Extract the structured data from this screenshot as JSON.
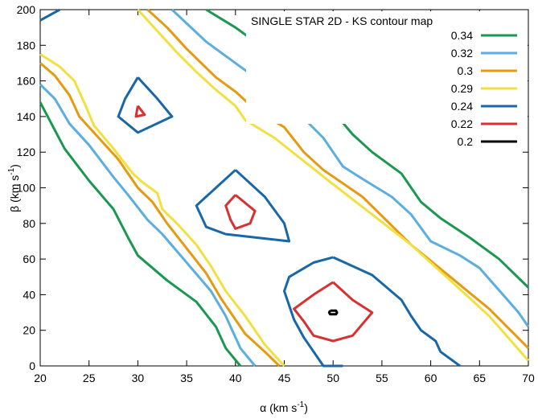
{
  "chart_data": {
    "type": "contour",
    "title": "SINGLE STAR 2D - KS contour map",
    "xlabel": {
      "main": "α (km s",
      "sup": "-1",
      "tail": ")"
    },
    "ylabel": {
      "main": "β (km s",
      "sup": "-1",
      "tail": ")"
    },
    "xlim": [
      20,
      70
    ],
    "ylim": [
      0,
      200
    ],
    "xticks": [
      20,
      25,
      30,
      35,
      40,
      45,
      50,
      55,
      60,
      65,
      70
    ],
    "yticks": [
      0,
      20,
      40,
      60,
      80,
      100,
      120,
      140,
      160,
      180,
      200
    ],
    "legend_position": "top-right",
    "series": [
      {
        "name": "0.34",
        "color": "#1a9850",
        "paths": [
          [
            [
              20,
              148
            ],
            [
              22.5,
              122
            ],
            [
              25,
              104
            ],
            [
              27.5,
              88
            ],
            [
              29,
              72
            ],
            [
              30,
              62
            ],
            [
              33,
              48
            ],
            [
              36,
              36
            ],
            [
              38,
              22
            ],
            [
              39,
              10
            ],
            [
              40.5,
              0
            ]
          ],
          [
            [
              37,
              200
            ],
            [
              40,
              190
            ],
            [
              42.5,
              180
            ],
            [
              47,
              158
            ],
            [
              50,
              143
            ],
            [
              52,
              130
            ],
            [
              54,
              120
            ],
            [
              57,
              108
            ],
            [
              59,
              92
            ],
            [
              61,
              83
            ],
            [
              64,
              72
            ],
            [
              67,
              60
            ],
            [
              70,
              44
            ]
          ]
        ]
      },
      {
        "name": "0.32",
        "color": "#5aaee0",
        "paths": [
          [
            [
              20,
              158
            ],
            [
              21.5,
              150
            ],
            [
              23,
              136
            ],
            [
              25,
              124
            ],
            [
              27.5,
              106
            ],
            [
              29,
              96
            ],
            [
              31,
              82
            ],
            [
              32.5,
              74
            ],
            [
              35,
              58
            ],
            [
              37.5,
              42
            ],
            [
              39,
              28
            ],
            [
              40.5,
              10
            ],
            [
              42,
              0
            ]
          ],
          [
            [
              33.5,
              200
            ],
            [
              37,
              182
            ],
            [
              42,
              162
            ],
            [
              45,
              150
            ],
            [
              49,
              128
            ],
            [
              51,
              112
            ],
            [
              53,
              105
            ],
            [
              56,
              95
            ],
            [
              58,
              85
            ],
            [
              60,
              70
            ],
            [
              63,
              62
            ],
            [
              65,
              55
            ],
            [
              69,
              30
            ],
            [
              70,
              22
            ]
          ]
        ]
      },
      {
        "name": "0.3",
        "color": "#e69a10",
        "paths": [
          [
            [
              20,
              170
            ],
            [
              21.5,
              163
            ],
            [
              23,
              152
            ],
            [
              24,
              140
            ],
            [
              26,
              128
            ],
            [
              28,
              116
            ],
            [
              30,
              100
            ],
            [
              31.5,
              92
            ],
            [
              33,
              80
            ],
            [
              35,
              66
            ],
            [
              37,
              52
            ],
            [
              38.5,
              38
            ],
            [
              41,
              18
            ],
            [
              43,
              8
            ],
            [
              44.5,
              0
            ]
          ],
          [
            [
              31,
              200
            ],
            [
              33,
              190
            ],
            [
              35,
              178
            ],
            [
              38,
              162
            ],
            [
              40,
              154
            ],
            [
              42,
              144
            ],
            [
              45,
              134
            ],
            [
              47,
              120
            ],
            [
              49,
              110
            ],
            [
              53,
              95
            ],
            [
              58,
              68
            ],
            [
              62,
              50
            ],
            [
              66,
              32
            ],
            [
              70,
              10
            ]
          ]
        ]
      },
      {
        "name": "0.29",
        "color": "#f2e040",
        "paths": [
          [
            [
              20,
              175
            ],
            [
              22,
              168
            ],
            [
              23.5,
              160
            ],
            [
              24.5,
              148
            ],
            [
              25.5,
              135
            ],
            [
              27.5,
              122
            ],
            [
              29.5,
              108
            ],
            [
              30.5,
              103
            ],
            [
              32,
              97
            ],
            [
              32.5,
              88
            ],
            [
              34,
              80
            ],
            [
              36,
              68
            ],
            [
              37.5,
              56
            ],
            [
              39,
              42
            ],
            [
              41,
              28
            ],
            [
              43,
              12
            ],
            [
              45,
              0
            ]
          ],
          [
            [
              30,
              200
            ],
            [
              32,
              188
            ],
            [
              34,
              176
            ],
            [
              36,
              165
            ],
            [
              38,
              155
            ],
            [
              40,
              146
            ],
            [
              41,
              138
            ],
            [
              44,
              128
            ],
            [
              47,
              115
            ],
            [
              50,
              102
            ],
            [
              54,
              85
            ],
            [
              58,
              68
            ],
            [
              62,
              48
            ],
            [
              66,
              28
            ],
            [
              70,
              3
            ]
          ]
        ]
      },
      {
        "name": "0.24",
        "color": "#1867a8",
        "paths": [
          [
            [
              20,
              194
            ],
            [
              22,
              200
            ]
          ],
          [
            [
              30,
              162
            ],
            [
              32,
              150
            ],
            [
              33.5,
              140
            ],
            [
              30,
              131
            ],
            [
              28,
              140
            ],
            [
              28.7,
              150
            ],
            [
              30,
              162
            ]
          ],
          [
            [
              40,
              110
            ],
            [
              43,
              95
            ],
            [
              45,
              80
            ],
            [
              45.5,
              70
            ],
            [
              39,
              74
            ],
            [
              37,
              78
            ],
            [
              36,
              90
            ],
            [
              38,
              100
            ],
            [
              40,
              110
            ]
          ],
          [
            [
              50,
              61
            ],
            [
              54,
              51
            ],
            [
              57,
              37
            ],
            [
              58,
              28
            ],
            [
              59,
              20
            ],
            [
              60.5,
              14
            ],
            [
              61,
              8
            ],
            [
              63,
              0
            ]
          ],
          [
            [
              51,
              0
            ],
            [
              49,
              0
            ],
            [
              47,
              16
            ],
            [
              46,
              26
            ],
            [
              45,
              42
            ],
            [
              45.5,
              50
            ],
            [
              48,
              58
            ],
            [
              50,
              61
            ]
          ]
        ]
      },
      {
        "name": "0.22",
        "color": "#d93030",
        "paths": [
          [
            [
              30,
              146
            ],
            [
              30.7,
              141
            ],
            [
              29.8,
              140
            ],
            [
              30,
              146
            ]
          ],
          [
            [
              40,
              96
            ],
            [
              42,
              87
            ],
            [
              41.5,
              80
            ],
            [
              40,
              77
            ],
            [
              39.5,
              82
            ],
            [
              39,
              90
            ],
            [
              40,
              96
            ]
          ],
          [
            [
              50,
              47
            ],
            [
              52,
              37
            ],
            [
              54,
              30
            ],
            [
              52,
              17
            ],
            [
              50,
              14
            ],
            [
              48,
              17
            ],
            [
              47,
              25
            ],
            [
              46,
              32
            ],
            [
              48,
              40
            ],
            [
              50,
              47
            ]
          ]
        ]
      },
      {
        "name": "0.2",
        "color": "#000000",
        "paths": [
          [
            [
              49.7,
              31
            ],
            [
              50.3,
              31
            ],
            [
              50.4,
              30
            ],
            [
              50.3,
              29
            ],
            [
              49.7,
              29
            ],
            [
              49.6,
              30
            ],
            [
              49.7,
              31
            ]
          ]
        ]
      }
    ]
  }
}
